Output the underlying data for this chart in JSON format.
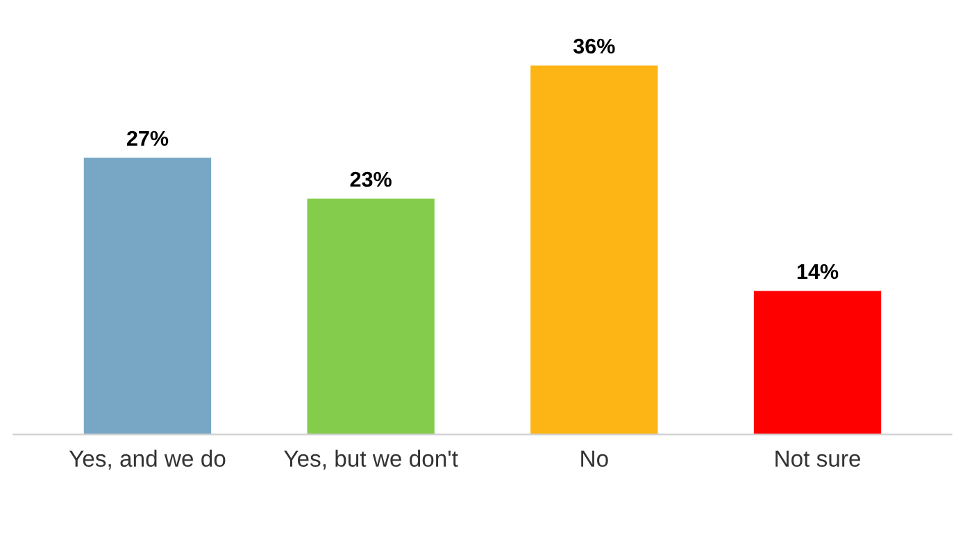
{
  "chart_data": {
    "type": "bar",
    "categories": [
      "Yes, and we do",
      "Yes, but we don't",
      "No",
      "Not sure"
    ],
    "values": [
      27,
      23,
      36,
      14
    ],
    "colors": [
      "#77a7c5",
      "#84cc4b",
      "#fdb515",
      "#fe0000"
    ],
    "value_labels": [
      "27%",
      "23%",
      "36%",
      "14%"
    ],
    "grid": false,
    "legend": false
  }
}
